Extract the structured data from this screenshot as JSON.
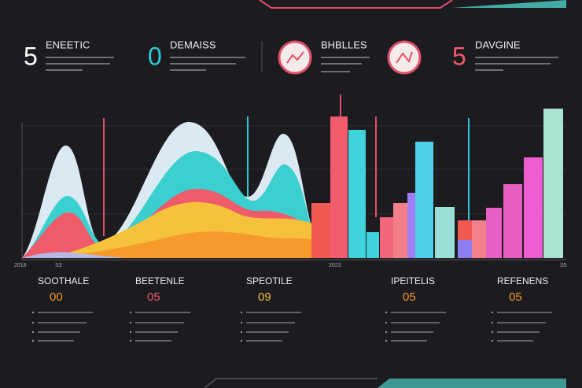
{
  "header": {
    "stats": [
      {
        "value": "5",
        "label": "ENEETIC"
      },
      {
        "value": "0",
        "label": "DEMAISS"
      },
      {
        "label": "BHBLLES"
      },
      {
        "value": "5",
        "label": "DAVGINE"
      }
    ]
  },
  "axis_labels": [
    "2018",
    "S3",
    "2023",
    "S5"
  ],
  "footer": {
    "items": [
      {
        "label": "SOOTHALE",
        "value": "00"
      },
      {
        "label": "BEETENLE",
        "value": "05"
      },
      {
        "label": "SPEOTILE",
        "value": "09"
      },
      {
        "label": "IPEITELIS",
        "value": "05"
      },
      {
        "label": "REFENENS",
        "value": "05"
      }
    ]
  }
}
